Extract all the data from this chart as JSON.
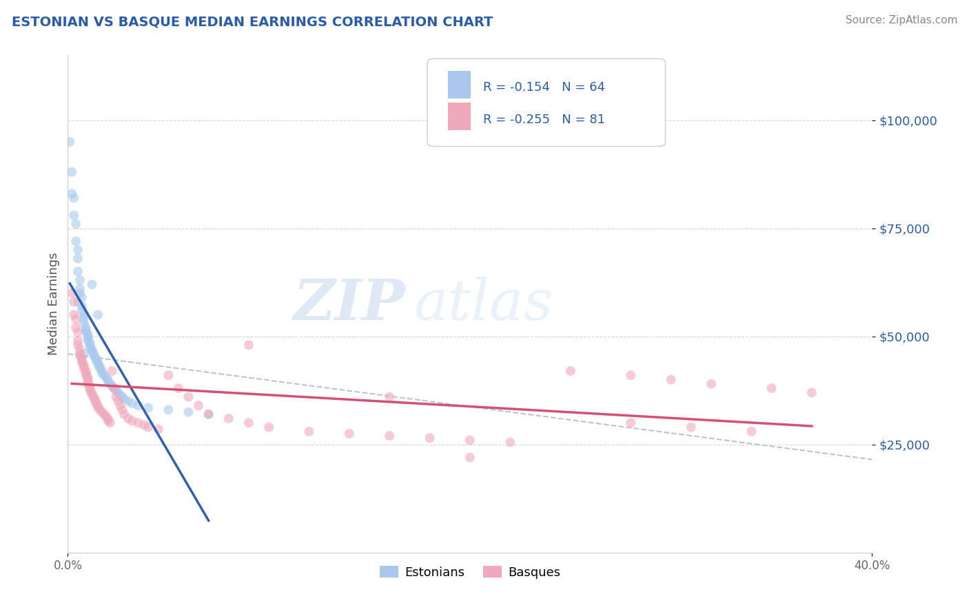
{
  "title": "ESTONIAN VS BASQUE MEDIAN EARNINGS CORRELATION CHART",
  "source": "Source: ZipAtlas.com",
  "ylabel": "Median Earnings",
  "xlim": [
    0.0,
    0.4
  ],
  "ylim": [
    0,
    115000
  ],
  "title_color": "#2a5caa",
  "axis_color": "#2a5caa",
  "legend_r1": "-0.154",
  "legend_n1": "64",
  "legend_r2": "-0.255",
  "legend_n2": "81",
  "color_estonian": "#a8c8ee",
  "color_basque": "#f0a8bc",
  "line_color_estonian": "#3060b0",
  "line_color_basque": "#d85070",
  "grid_color": "#cccccc",
  "background_color": "#ffffff",
  "scatter_alpha": 0.6,
  "marker_size": 100,
  "estonians_x": [
    0.001,
    0.002,
    0.002,
    0.003,
    0.003,
    0.004,
    0.004,
    0.005,
    0.005,
    0.005,
    0.006,
    0.006,
    0.006,
    0.007,
    0.007,
    0.007,
    0.008,
    0.008,
    0.008,
    0.009,
    0.009,
    0.009,
    0.01,
    0.01,
    0.01,
    0.01,
    0.011,
    0.011,
    0.011,
    0.012,
    0.012,
    0.013,
    0.013,
    0.014,
    0.014,
    0.015,
    0.015,
    0.016,
    0.016,
    0.017,
    0.017,
    0.018,
    0.019,
    0.02,
    0.02,
    0.021,
    0.022,
    0.023,
    0.024,
    0.025,
    0.026,
    0.027,
    0.028,
    0.03,
    0.032,
    0.035,
    0.04,
    0.05,
    0.06,
    0.07,
    0.005,
    0.008,
    0.012,
    0.015
  ],
  "estonians_y": [
    95000,
    88000,
    83000,
    82000,
    78000,
    76000,
    72000,
    70000,
    68000,
    65000,
    63000,
    61000,
    60000,
    59000,
    57000,
    56000,
    55000,
    54000,
    53000,
    52000,
    51500,
    51000,
    50500,
    50000,
    49500,
    49000,
    48500,
    48000,
    47500,
    47000,
    46500,
    46000,
    45500,
    45000,
    44500,
    44000,
    43500,
    43000,
    42500,
    42000,
    41500,
    41000,
    40500,
    40000,
    39500,
    39000,
    38500,
    38000,
    37500,
    37000,
    36500,
    36000,
    35500,
    35000,
    34500,
    34000,
    33500,
    33000,
    32500,
    32000,
    58000,
    46000,
    62000,
    55000
  ],
  "basques_x": [
    0.002,
    0.003,
    0.003,
    0.004,
    0.004,
    0.005,
    0.005,
    0.005,
    0.006,
    0.006,
    0.006,
    0.007,
    0.007,
    0.007,
    0.008,
    0.008,
    0.008,
    0.009,
    0.009,
    0.009,
    0.01,
    0.01,
    0.01,
    0.01,
    0.011,
    0.011,
    0.011,
    0.012,
    0.012,
    0.013,
    0.013,
    0.014,
    0.014,
    0.015,
    0.015,
    0.016,
    0.017,
    0.018,
    0.019,
    0.02,
    0.02,
    0.021,
    0.022,
    0.023,
    0.024,
    0.025,
    0.026,
    0.027,
    0.028,
    0.03,
    0.032,
    0.035,
    0.038,
    0.04,
    0.045,
    0.05,
    0.055,
    0.06,
    0.065,
    0.07,
    0.08,
    0.09,
    0.1,
    0.12,
    0.14,
    0.16,
    0.18,
    0.2,
    0.22,
    0.25,
    0.28,
    0.3,
    0.32,
    0.35,
    0.37,
    0.28,
    0.31,
    0.34,
    0.2,
    0.16,
    0.09
  ],
  "basques_y": [
    60000,
    58000,
    55000,
    54000,
    52000,
    51000,
    49000,
    48000,
    47000,
    46000,
    45500,
    45000,
    44500,
    44000,
    43500,
    43000,
    42500,
    42000,
    41500,
    41000,
    40500,
    40000,
    39500,
    39000,
    38500,
    38000,
    37500,
    37000,
    36500,
    36000,
    35500,
    35000,
    34500,
    34000,
    33500,
    33000,
    32500,
    32000,
    31500,
    31000,
    30500,
    30000,
    42000,
    38000,
    36000,
    35000,
    34000,
    33000,
    32000,
    31000,
    30500,
    30000,
    29500,
    29000,
    28500,
    41000,
    38000,
    36000,
    34000,
    32000,
    31000,
    30000,
    29000,
    28000,
    27500,
    27000,
    26500,
    26000,
    25500,
    42000,
    41000,
    40000,
    39000,
    38000,
    37000,
    30000,
    29000,
    28000,
    22000,
    36000,
    48000
  ]
}
